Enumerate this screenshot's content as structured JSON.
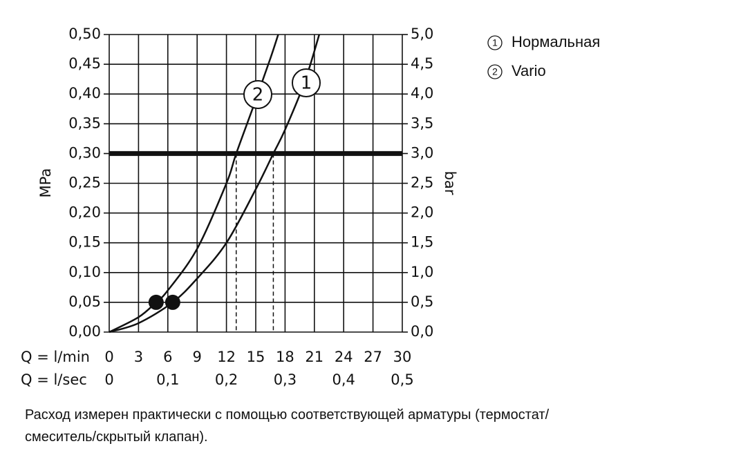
{
  "chart_data": {
    "type": "line",
    "x_label": "Q = l/min",
    "x2_label": "Q = l/sec",
    "y_label": "MPa",
    "y2_label": "bar",
    "xlim": [
      0,
      30
    ],
    "xticks": [
      0,
      3,
      6,
      9,
      12,
      15,
      18,
      21,
      24,
      27,
      30
    ],
    "x2lim": [
      0,
      0.5
    ],
    "x2ticks": [
      0,
      {
        "value": 0.1,
        "label": "0,1"
      },
      {
        "value": 0.2,
        "label": "0,2"
      },
      {
        "value": 0.3,
        "label": "0,3"
      },
      {
        "value": 0.4,
        "label": "0,4"
      },
      {
        "value": 0.5,
        "label": "0,5"
      }
    ],
    "ylim": [
      0,
      0.5
    ],
    "yticks": [
      {
        "value": 0,
        "label": "0,00"
      },
      {
        "value": 0.05,
        "label": "0,05"
      },
      {
        "value": 0.1,
        "label": "0,10"
      },
      {
        "value": 0.15,
        "label": "0,15"
      },
      {
        "value": 0.2,
        "label": "0,20"
      },
      {
        "value": 0.25,
        "label": "0,25"
      },
      {
        "value": 0.3,
        "label": "0,30"
      },
      {
        "value": 0.35,
        "label": "0,35"
      },
      {
        "value": 0.4,
        "label": "0,40"
      },
      {
        "value": 0.45,
        "label": "0,45"
      },
      {
        "value": 0.5,
        "label": "0,50"
      }
    ],
    "y2lim": [
      0,
      5
    ],
    "y2ticks": [
      {
        "value": 0,
        "label": "0,0"
      },
      {
        "value": 0.5,
        "label": "0,5"
      },
      {
        "value": 1,
        "label": "1,0"
      },
      {
        "value": 1.5,
        "label": "1,5"
      },
      {
        "value": 2,
        "label": "2,0"
      },
      {
        "value": 2.5,
        "label": "2,5"
      },
      {
        "value": 3,
        "label": "3,0"
      },
      {
        "value": 3.5,
        "label": "3,5"
      },
      {
        "value": 4,
        "label": "4,0"
      },
      {
        "value": 4.5,
        "label": "4,5"
      },
      {
        "value": 5,
        "label": "5,0"
      }
    ],
    "grid": true,
    "series": [
      {
        "name": "Нормальная",
        "label": "1",
        "color": "#111",
        "x": [
          0,
          3,
          6.5,
          9,
          12,
          15,
          16.8,
          18,
          20,
          21.5
        ],
        "values": [
          0,
          0.015,
          0.05,
          0.09,
          0.15,
          0.24,
          0.3,
          0.34,
          0.42,
          0.5
        ],
        "marker_x": 6.5,
        "marker_y": 0.05
      },
      {
        "name": "Vario",
        "label": "2",
        "color": "#111",
        "x": [
          0,
          3,
          4.8,
          6,
          9,
          12,
          13,
          15,
          16.5,
          17.3
        ],
        "values": [
          0,
          0.025,
          0.05,
          0.07,
          0.14,
          0.25,
          0.3,
          0.39,
          0.46,
          0.5
        ],
        "marker_x": 4.8,
        "marker_y": 0.05
      }
    ],
    "reference_line": 0.3,
    "dashed_x": [
      13,
      16.8
    ],
    "note_lines": [
      "Расход измерен практически с помощью соответствующей арматуры (термостат/",
      "смеситель/скрытый клапан)."
    ]
  }
}
